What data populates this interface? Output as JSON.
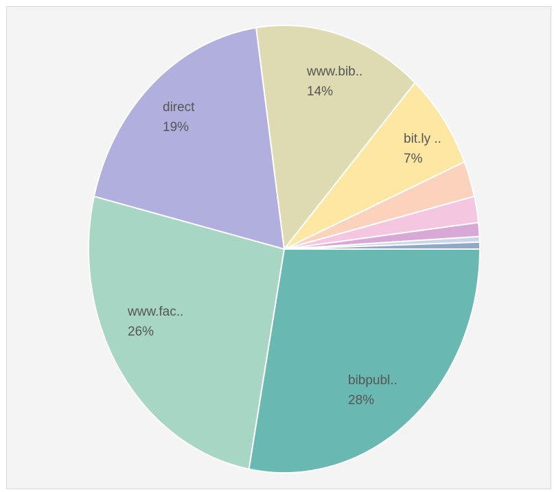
{
  "chart_data": {
    "type": "pie",
    "title": "",
    "legend": "none",
    "slices": [
      {
        "label": "bibpubl..",
        "pct_label": "28%",
        "value": 28.0,
        "color": "#6ab8b2",
        "show_label": true
      },
      {
        "label": "www.fac..",
        "pct_label": "26%",
        "value": 26.0,
        "color": "#a8d6c4",
        "show_label": true
      },
      {
        "label": "direct",
        "pct_label": "19%",
        "value": 19.0,
        "color": "#b1afdd",
        "show_label": true
      },
      {
        "label": "www.bib..",
        "pct_label": "14%",
        "value": 14.0,
        "color": "#dedbb2",
        "show_label": true
      },
      {
        "label": "bit.ly ..",
        "pct_label": "7%",
        "value": 7.0,
        "color": "#fde7a3",
        "show_label": true
      },
      {
        "label": "",
        "pct_label": "",
        "value": 2.6,
        "color": "#fbd3bc",
        "show_label": false
      },
      {
        "label": "",
        "pct_label": "",
        "value": 1.9,
        "color": "#f5c6e0",
        "show_label": false
      },
      {
        "label": "",
        "pct_label": "",
        "value": 1.0,
        "color": "#d8a8d6",
        "show_label": false
      },
      {
        "label": "",
        "pct_label": "",
        "value": 0.4,
        "color": "#c9d6ea",
        "show_label": false
      },
      {
        "label": "",
        "pct_label": "",
        "value": 0.5,
        "color": "#8fa9c7",
        "show_label": false
      }
    ]
  }
}
